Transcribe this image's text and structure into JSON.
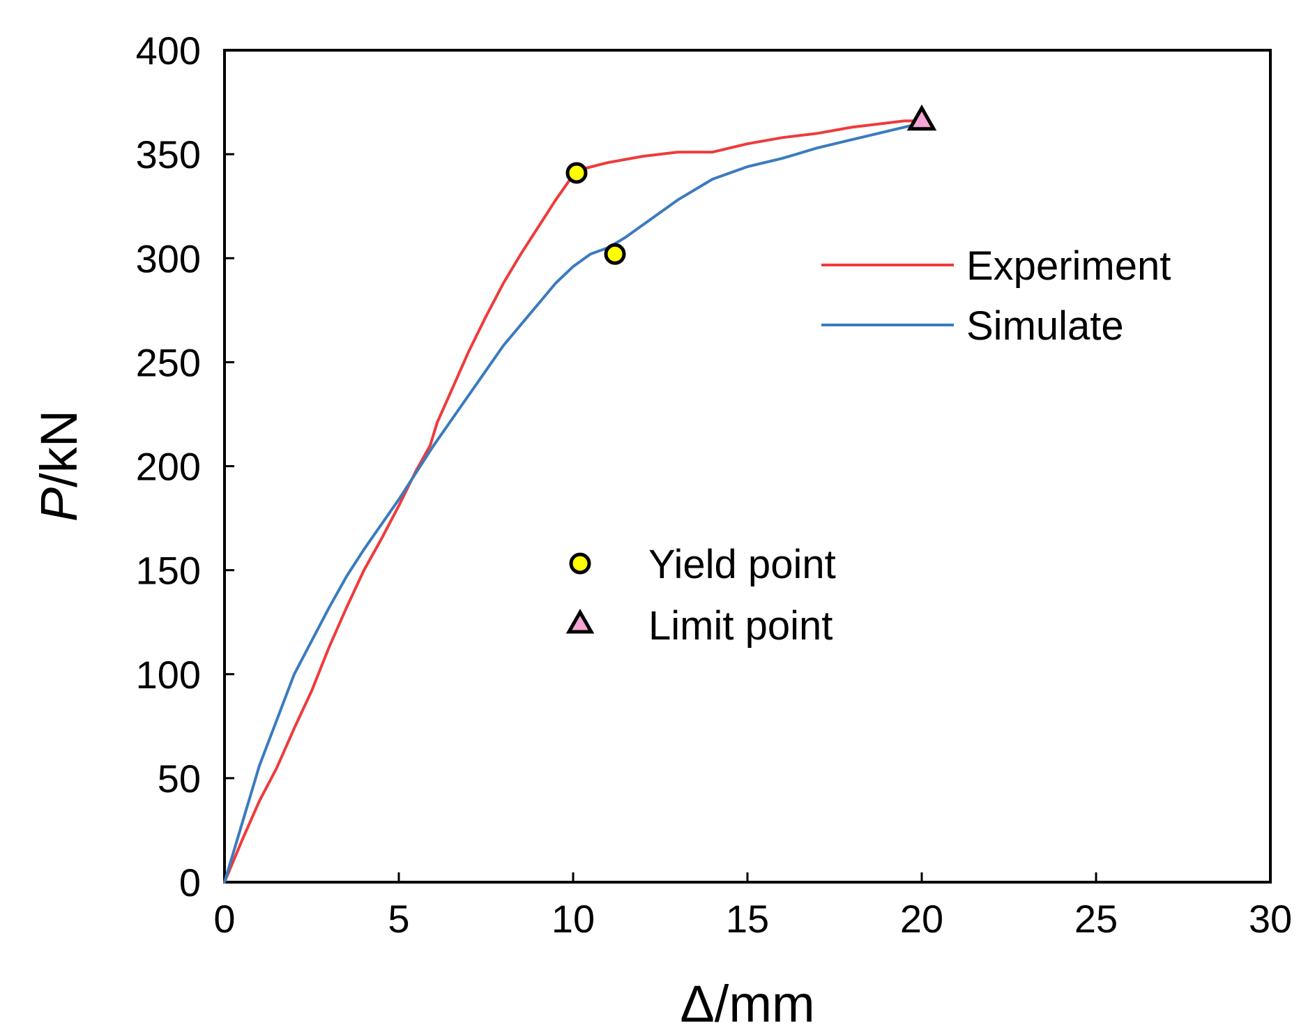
{
  "chart_data": {
    "type": "line",
    "title": "",
    "xlabel": "Δ/mm",
    "ylabel_italic": "P",
    "ylabel_rest": "/kN",
    "xlim": [
      0,
      30
    ],
    "ylim": [
      0,
      400
    ],
    "xticks": [
      0,
      5,
      10,
      15,
      20,
      25,
      30
    ],
    "yticks": [
      0,
      50,
      100,
      150,
      200,
      250,
      300,
      350,
      400
    ],
    "xtick_labels": [
      "0",
      "5",
      "10",
      "15",
      "20",
      "25",
      "30"
    ],
    "ytick_labels": [
      "0",
      "50",
      "100",
      "150",
      "200",
      "250",
      "300",
      "350",
      "400"
    ],
    "grid": false,
    "series": [
      {
        "name": "Experiment",
        "color": "#ee3b3b",
        "x": [
          0,
          0.5,
          1.0,
          1.5,
          2.0,
          2.5,
          3.0,
          3.5,
          4.0,
          4.5,
          5.0,
          5.5,
          5.9,
          6.1,
          6.5,
          7.0,
          7.5,
          8.0,
          8.5,
          9.0,
          9.5,
          10.0,
          10.3,
          11.0,
          12.0,
          13.0,
          14.0,
          15.0,
          16.0,
          17.0,
          18.0,
          19.0,
          19.5,
          20.0
        ],
        "y": [
          0,
          20,
          39,
          55,
          74,
          92,
          113,
          132,
          150,
          165,
          181,
          198,
          210,
          221,
          236,
          255,
          272,
          288,
          302,
          315,
          328,
          340,
          343,
          346,
          349,
          351,
          351,
          355,
          358,
          360,
          363,
          365,
          366,
          366
        ]
      },
      {
        "name": "Simulate",
        "color": "#3a7bbf",
        "x": [
          0,
          0.5,
          1.0,
          1.5,
          2.0,
          2.5,
          3.0,
          3.5,
          4.0,
          4.5,
          5.0,
          5.5,
          6.0,
          6.5,
          7.0,
          7.5,
          8.0,
          8.5,
          9.0,
          9.5,
          10.0,
          10.5,
          11.0,
          11.5,
          12.0,
          13.0,
          14.0,
          15.0,
          16.0,
          17.0,
          18.0,
          19.0,
          20.0
        ],
        "y": [
          0,
          28,
          56,
          78,
          100,
          116,
          132,
          147,
          160,
          172,
          184,
          197,
          210,
          222,
          234,
          246,
          258,
          268,
          278,
          288,
          296,
          302,
          305,
          310,
          316,
          328,
          338,
          344,
          348,
          353,
          357,
          361,
          365
        ]
      }
    ],
    "markers": [
      {
        "name": "Yield point",
        "shape": "circle",
        "fill": "#ffff00",
        "points": [
          [
            10.1,
            341
          ],
          [
            11.2,
            302
          ]
        ]
      },
      {
        "name": "Limit point",
        "shape": "triangle",
        "fill": "#f4a6d4",
        "points": [
          [
            20.0,
            366
          ]
        ]
      }
    ],
    "legend": {
      "lines_position": "top-right",
      "markers_position": "center",
      "line_entries": [
        "Experiment",
        "Simulate"
      ],
      "marker_entries": [
        "Yield point",
        "Limit point"
      ]
    }
  }
}
